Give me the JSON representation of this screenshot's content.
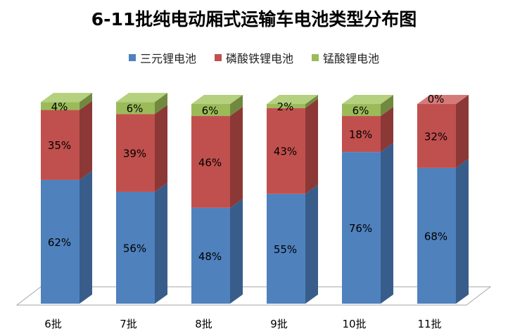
{
  "chart_data": {
    "type": "bar",
    "stacked": true,
    "style": "3d-stacked-percent",
    "title": "6-11批纯电动厢式运输车电池类型分布图",
    "categories": [
      "6批",
      "7批",
      "8批",
      "9批",
      "10批",
      "11批"
    ],
    "series": [
      {
        "name": "三元锂电池",
        "values": [
          62,
          56,
          48,
          55,
          76,
          68
        ],
        "labels": [
          "62%",
          "56%",
          "48%",
          "55%",
          "76%",
          "68%"
        ]
      },
      {
        "name": "磷酸铁锂电池",
        "values": [
          35,
          39,
          46,
          43,
          18,
          32
        ],
        "labels": [
          "35%",
          "39%",
          "46%",
          "43%",
          "18%",
          "32%"
        ]
      },
      {
        "name": "锰酸锂电池",
        "values": [
          4,
          6,
          6,
          2,
          6,
          0
        ],
        "labels": [
          "4%",
          "6%",
          "6%",
          "2%",
          "6%",
          "0%"
        ]
      }
    ],
    "ylim": [
      0,
      100
    ],
    "legend_position": "top",
    "grid": false,
    "colors": {
      "series": [
        "#4F81BD",
        "#C0504D",
        "#9BBB59"
      ],
      "side": [
        "#385D8A",
        "#8C3836",
        "#71893F"
      ],
      "top": [
        "#6E9AD1",
        "#D47B79",
        "#B5D07E"
      ]
    }
  }
}
